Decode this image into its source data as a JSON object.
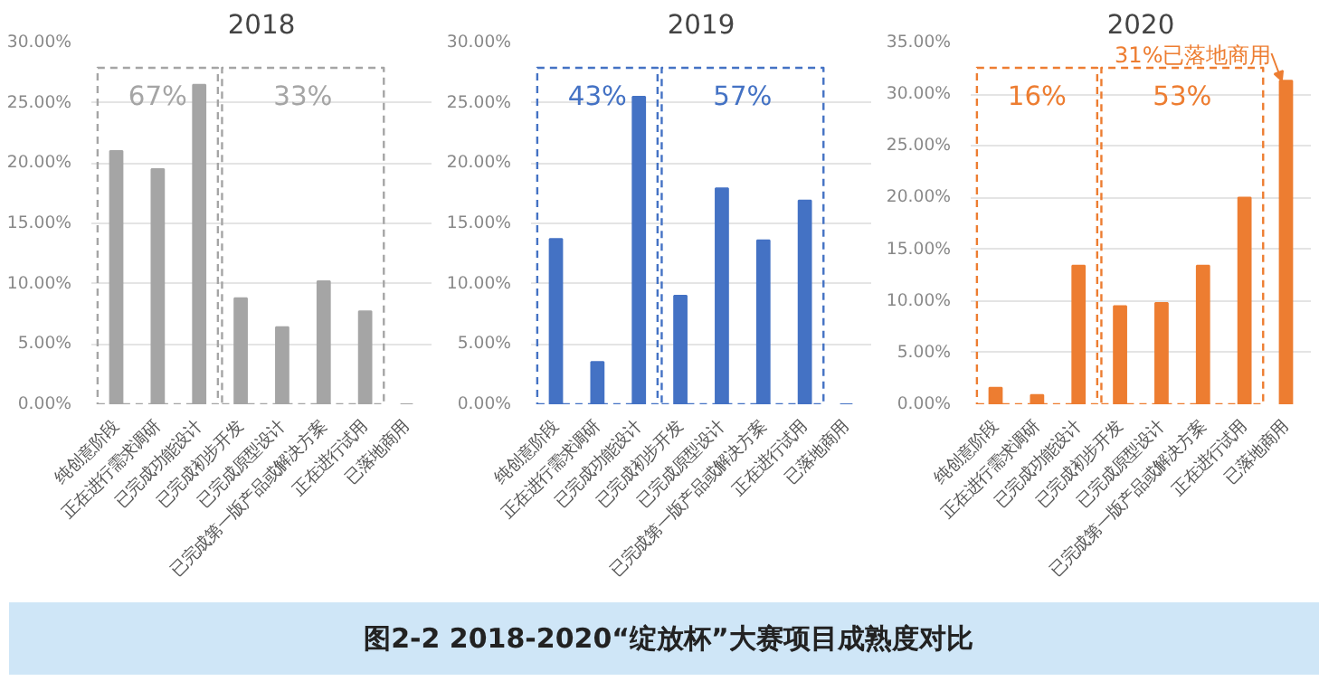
{
  "chart_data": [
    {
      "type": "bar",
      "title": "2018",
      "categories": [
        "纯创意阶段",
        "正在进行需求调研",
        "已完成功能设计",
        "已完成初步开发",
        "已完成原型设计",
        "已完成第一版产品或解决方案",
        "正在进行试用",
        "已落地商用"
      ],
      "values": [
        21.0,
        19.5,
        26.5,
        8.8,
        6.4,
        10.2,
        7.7,
        0
      ],
      "color": "#a5a5a5",
      "ylim": [
        0,
        30
      ],
      "yticks": [
        {
          "value": 0,
          "label": "0.00%"
        },
        {
          "value": 5,
          "label": "5.00%"
        },
        {
          "value": 10,
          "label": "10.00%"
        },
        {
          "value": 15,
          "label": "15.00%"
        },
        {
          "value": 20,
          "label": "20.00%"
        },
        {
          "value": 25,
          "label": "25.00%"
        },
        {
          "value": 30,
          "label": "30.00%"
        }
      ],
      "grid": "y",
      "annotations": [
        "67%",
        "33%",
        "图2-2  2018-2020“绽放杯”大赛项目成熟度对比"
      ]
    },
    {
      "type": "bar",
      "title": "2019",
      "categories": [
        "纯创意阶段",
        "正在进行需求调研",
        "已完成功能设计",
        "已完成初步开发",
        "已完成原型设计",
        "已完成第一版产品或解决方案",
        "正在进行试用",
        "已落地商用"
      ],
      "values": [
        13.7,
        3.5,
        25.5,
        9.0,
        17.9,
        13.6,
        16.9,
        0
      ],
      "color": "#4472c4",
      "ylim": [
        0,
        30
      ],
      "yticks": [
        {
          "value": 0,
          "label": "0.00%"
        },
        {
          "value": 5,
          "label": "5.00%"
        },
        {
          "value": 10,
          "label": "10.00%"
        },
        {
          "value": 15,
          "label": "15.00%"
        },
        {
          "value": 20,
          "label": "20.00%"
        },
        {
          "value": 25,
          "label": "25.00%"
        },
        {
          "value": 30,
          "label": "30.00%"
        }
      ],
      "grid": "y",
      "annotations": [
        "43%",
        "57%"
      ]
    },
    {
      "type": "bar",
      "title": "2020",
      "categories": [
        "纯创意阶段",
        "正在进行需求调研",
        "已完成功能设计",
        "已完成初步开发",
        "已完成原型设计",
        "已完成第一版产品或解决方案",
        "正在进行试用",
        "已落地商用"
      ],
      "values": [
        1.6,
        0.9,
        13.4,
        9.5,
        9.8,
        13.4,
        20.0,
        31.3
      ],
      "color": "#ed7d31",
      "ylim": [
        0,
        35
      ],
      "yticks": [
        {
          "value": 0,
          "label": "0.00%"
        },
        {
          "value": 5,
          "label": "5.00%"
        },
        {
          "value": 10,
          "label": "10.00%"
        },
        {
          "value": 15,
          "label": "15.00%"
        },
        {
          "value": 20,
          "label": "20.00%"
        },
        {
          "value": 25,
          "label": "25.00%"
        },
        {
          "value": 30,
          "label": "30.00%"
        },
        {
          "value": 35,
          "label": "35.00%"
        }
      ],
      "grid": "y",
      "annotations": [
        "16%",
        "53%",
        {
          "text": "31%已落地商用",
          "x": "已落地商用",
          "y": 31.3
        }
      ]
    }
  ]
}
